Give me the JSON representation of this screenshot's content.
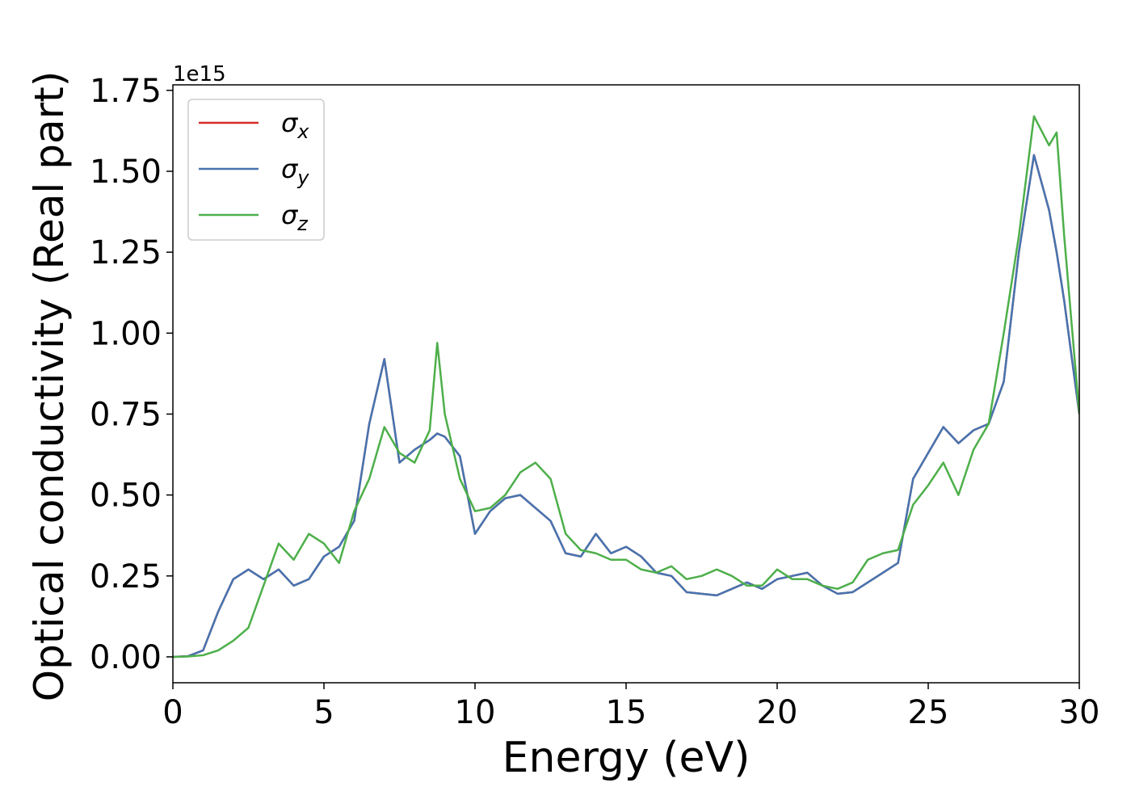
{
  "chart_data": {
    "type": "line",
    "xlabel": "Energy (eV)",
    "ylabel": "Optical conductivity (Real part)",
    "y_offset_label": "1e15",
    "x": [
      0,
      0.5,
      1,
      1.5,
      2,
      2.5,
      3,
      3.5,
      4,
      4.5,
      5,
      5.5,
      6,
      6.5,
      7,
      7.5,
      8,
      8.5,
      8.75,
      9,
      9.5,
      10,
      10.5,
      11,
      11.5,
      12,
      12.5,
      13,
      13.5,
      14,
      14.5,
      15,
      15.5,
      16,
      16.5,
      17,
      17.5,
      18,
      18.5,
      19,
      19.5,
      20,
      20.5,
      21,
      21.5,
      22,
      22.5,
      23,
      23.5,
      24,
      24.5,
      25,
      25.5,
      26,
      26.5,
      27,
      27.5,
      28,
      28.5,
      29,
      29.25,
      29.5,
      30
    ],
    "series": [
      {
        "name": "σx",
        "color": "#d62a2a",
        "values": [
          0,
          0.002,
          0.02,
          0.14,
          0.24,
          0.27,
          0.24,
          0.27,
          0.22,
          0.24,
          0.31,
          0.34,
          0.42,
          0.72,
          0.92,
          0.6,
          0.64,
          0.67,
          0.69,
          0.68,
          0.62,
          0.38,
          0.45,
          0.49,
          0.5,
          0.46,
          0.42,
          0.32,
          0.31,
          0.38,
          0.32,
          0.34,
          0.31,
          0.26,
          0.25,
          0.2,
          0.195,
          0.19,
          0.21,
          0.23,
          0.21,
          0.24,
          0.25,
          0.26,
          0.22,
          0.195,
          0.2,
          0.23,
          0.26,
          0.29,
          0.55,
          0.63,
          0.71,
          0.66,
          0.7,
          0.72,
          0.85,
          1.25,
          1.55,
          1.38,
          1.25,
          1.1,
          0.75
        ]
      },
      {
        "name": "σy",
        "color": "#4574b0",
        "values": [
          0,
          0.002,
          0.02,
          0.14,
          0.24,
          0.27,
          0.24,
          0.27,
          0.22,
          0.24,
          0.31,
          0.34,
          0.42,
          0.72,
          0.92,
          0.6,
          0.64,
          0.67,
          0.69,
          0.68,
          0.62,
          0.38,
          0.45,
          0.49,
          0.5,
          0.46,
          0.42,
          0.32,
          0.31,
          0.38,
          0.32,
          0.34,
          0.31,
          0.26,
          0.25,
          0.2,
          0.195,
          0.19,
          0.21,
          0.23,
          0.21,
          0.24,
          0.25,
          0.26,
          0.22,
          0.195,
          0.2,
          0.23,
          0.26,
          0.29,
          0.55,
          0.63,
          0.71,
          0.66,
          0.7,
          0.72,
          0.85,
          1.25,
          1.55,
          1.38,
          1.25,
          1.1,
          0.75
        ]
      },
      {
        "name": "σz",
        "color": "#4daf4a",
        "values": [
          0,
          0.001,
          0.005,
          0.02,
          0.05,
          0.09,
          0.22,
          0.35,
          0.3,
          0.38,
          0.35,
          0.29,
          0.45,
          0.55,
          0.71,
          0.63,
          0.6,
          0.7,
          0.97,
          0.75,
          0.55,
          0.45,
          0.46,
          0.5,
          0.57,
          0.6,
          0.55,
          0.38,
          0.33,
          0.32,
          0.3,
          0.3,
          0.27,
          0.26,
          0.28,
          0.24,
          0.25,
          0.27,
          0.25,
          0.22,
          0.22,
          0.27,
          0.24,
          0.24,
          0.22,
          0.21,
          0.23,
          0.3,
          0.32,
          0.33,
          0.47,
          0.53,
          0.6,
          0.5,
          0.64,
          0.72,
          1.0,
          1.3,
          1.67,
          1.58,
          1.62,
          1.3,
          0.75
        ]
      }
    ],
    "xlim": [
      0,
      30
    ],
    "xticks": [
      0,
      5,
      10,
      15,
      20,
      25,
      30
    ],
    "ylim": [
      -0.08,
      1.767
    ],
    "yticks": [
      {
        "value": 0,
        "label": "0.00"
      },
      0.25,
      {
        "value": 0.5,
        "label": "0.50"
      },
      0.75,
      {
        "value": 1,
        "label": "1.00"
      },
      1.25,
      {
        "value": 1.5,
        "label": "1.50"
      },
      1.75
    ],
    "legend": "upper left"
  }
}
